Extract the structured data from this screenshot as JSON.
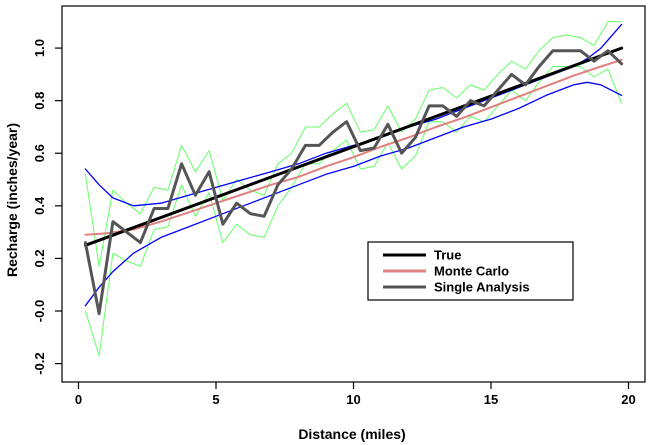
{
  "chart_data": {
    "type": "line",
    "xlabel": "Distance (miles)",
    "ylabel": "Recharge (inches/year)",
    "xlim": [
      -0.6,
      20.6
    ],
    "ylim": [
      -0.27,
      1.16
    ],
    "x_ticks": [
      0,
      5,
      10,
      15,
      20
    ],
    "x_tick_labels": [
      "0",
      "5",
      "10",
      "15",
      "20"
    ],
    "y_ticks": [
      -0.2,
      0.0,
      0.2,
      0.4,
      0.6,
      0.8,
      1.0
    ],
    "y_tick_labels": [
      "-0.2",
      "-0.0",
      "0.2",
      "0.4",
      "0.6",
      "0.8",
      "1.0"
    ],
    "grid": false,
    "legend_position": "center-right",
    "legend": [
      {
        "label": "True",
        "color": "#000000"
      },
      {
        "label": "Monte Carlo",
        "color": "#e08080"
      },
      {
        "label": "Single Analysis",
        "color": "#555555"
      }
    ],
    "series": [
      {
        "name": "True",
        "color": "#000000",
        "width": 3,
        "x": [
          0.25,
          19.75
        ],
        "y": [
          0.25,
          1.0
        ]
      },
      {
        "name": "Monte Carlo",
        "color": "#e08080",
        "width": 2,
        "x": [
          0.25,
          1,
          2,
          3,
          4,
          5,
          6,
          7,
          8,
          9,
          10,
          11,
          12,
          13,
          14,
          15,
          16,
          17,
          18,
          19,
          19.75
        ],
        "y": [
          0.29,
          0.295,
          0.31,
          0.34,
          0.375,
          0.41,
          0.445,
          0.48,
          0.51,
          0.55,
          0.585,
          0.625,
          0.66,
          0.7,
          0.735,
          0.775,
          0.815,
          0.855,
          0.895,
          0.93,
          0.955
        ]
      },
      {
        "name": "Single Analysis",
        "color": "#555555",
        "width": 3,
        "x": [
          0.25,
          0.75,
          1.25,
          1.75,
          2.25,
          2.75,
          3.25,
          3.75,
          4.25,
          4.75,
          5.25,
          5.75,
          6.25,
          6.75,
          7.25,
          7.75,
          8.25,
          8.75,
          9.25,
          9.75,
          10.25,
          10.75,
          11.25,
          11.75,
          12.25,
          12.75,
          13.25,
          13.75,
          14.25,
          14.75,
          15.25,
          15.75,
          16.25,
          16.75,
          17.25,
          17.75,
          18.25,
          18.75,
          19.25,
          19.75
        ],
        "y": [
          0.26,
          -0.01,
          0.34,
          0.3,
          0.26,
          0.39,
          0.39,
          0.56,
          0.44,
          0.53,
          0.33,
          0.41,
          0.37,
          0.36,
          0.48,
          0.54,
          0.63,
          0.63,
          0.68,
          0.72,
          0.61,
          0.62,
          0.71,
          0.6,
          0.66,
          0.78,
          0.78,
          0.74,
          0.8,
          0.78,
          0.84,
          0.9,
          0.86,
          0.93,
          0.99,
          0.99,
          0.99,
          0.95,
          0.99,
          0.94
        ]
      },
      {
        "name": "",
        "color": "#0000ff",
        "width": 1.3,
        "x": [
          0.25,
          0.75,
          1.25,
          2,
          3,
          4,
          5,
          6,
          7,
          8,
          9,
          10,
          11,
          12,
          13,
          14,
          15,
          16,
          17,
          18,
          18.5,
          19,
          19.75
        ],
        "y": [
          0.54,
          0.48,
          0.43,
          0.4,
          0.41,
          0.44,
          0.47,
          0.5,
          0.53,
          0.56,
          0.6,
          0.63,
          0.66,
          0.7,
          0.73,
          0.77,
          0.81,
          0.85,
          0.89,
          0.93,
          0.96,
          1.0,
          1.09
        ]
      },
      {
        "name": "",
        "color": "#0000ff",
        "width": 1.3,
        "x": [
          0.25,
          0.75,
          1.25,
          2,
          3,
          4,
          5,
          6,
          7,
          8,
          9,
          10,
          11,
          12,
          13,
          14,
          15,
          16,
          17,
          18,
          18.5,
          19,
          19.75
        ],
        "y": [
          0.02,
          0.09,
          0.15,
          0.22,
          0.28,
          0.32,
          0.36,
          0.4,
          0.44,
          0.48,
          0.52,
          0.55,
          0.59,
          0.62,
          0.66,
          0.7,
          0.73,
          0.77,
          0.82,
          0.86,
          0.87,
          0.86,
          0.82
        ]
      },
      {
        "name": "",
        "color": "#66ff66",
        "width": 1,
        "x": [
          0.25,
          0.75,
          1.25,
          1.75,
          2.25,
          2.75,
          3.25,
          3.75,
          4.25,
          4.75,
          5.25,
          5.75,
          6.25,
          6.75,
          7.25,
          7.75,
          8.25,
          8.75,
          9.25,
          9.75,
          10.25,
          10.75,
          11.25,
          11.75,
          12.25,
          12.75,
          13.25,
          13.75,
          14.25,
          14.75,
          15.25,
          15.75,
          16.25,
          16.75,
          17.25,
          17.75,
          18.25,
          18.75,
          19.25,
          19.75
        ],
        "y": [
          0.52,
          0.17,
          0.46,
          0.41,
          0.37,
          0.47,
          0.46,
          0.63,
          0.53,
          0.61,
          0.42,
          0.5,
          0.46,
          0.44,
          0.56,
          0.6,
          0.7,
          0.7,
          0.75,
          0.79,
          0.68,
          0.69,
          0.78,
          0.68,
          0.73,
          0.84,
          0.85,
          0.81,
          0.86,
          0.84,
          0.9,
          0.95,
          0.92,
          0.99,
          1.04,
          1.05,
          1.04,
          1.01,
          1.1,
          1.1
        ]
      },
      {
        "name": "",
        "color": "#66ff66",
        "width": 1,
        "x": [
          0.25,
          0.75,
          1.25,
          1.75,
          2.25,
          2.75,
          3.25,
          3.75,
          4.25,
          4.75,
          5.25,
          5.75,
          6.25,
          6.75,
          7.25,
          7.75,
          8.25,
          8.75,
          9.25,
          9.75,
          10.25,
          10.75,
          11.25,
          11.75,
          12.25,
          12.75,
          13.25,
          13.75,
          14.25,
          14.75,
          15.25,
          15.75,
          16.25,
          16.75,
          17.25,
          17.75,
          18.25,
          18.75,
          19.25,
          19.75
        ],
        "y": [
          0.0,
          -0.17,
          0.22,
          0.19,
          0.17,
          0.31,
          0.32,
          0.48,
          0.36,
          0.45,
          0.26,
          0.33,
          0.29,
          0.28,
          0.4,
          0.47,
          0.56,
          0.56,
          0.61,
          0.65,
          0.54,
          0.55,
          0.64,
          0.54,
          0.59,
          0.72,
          0.72,
          0.68,
          0.74,
          0.72,
          0.78,
          0.84,
          0.8,
          0.87,
          0.93,
          0.93,
          0.93,
          0.89,
          0.92,
          0.79
        ]
      }
    ]
  }
}
